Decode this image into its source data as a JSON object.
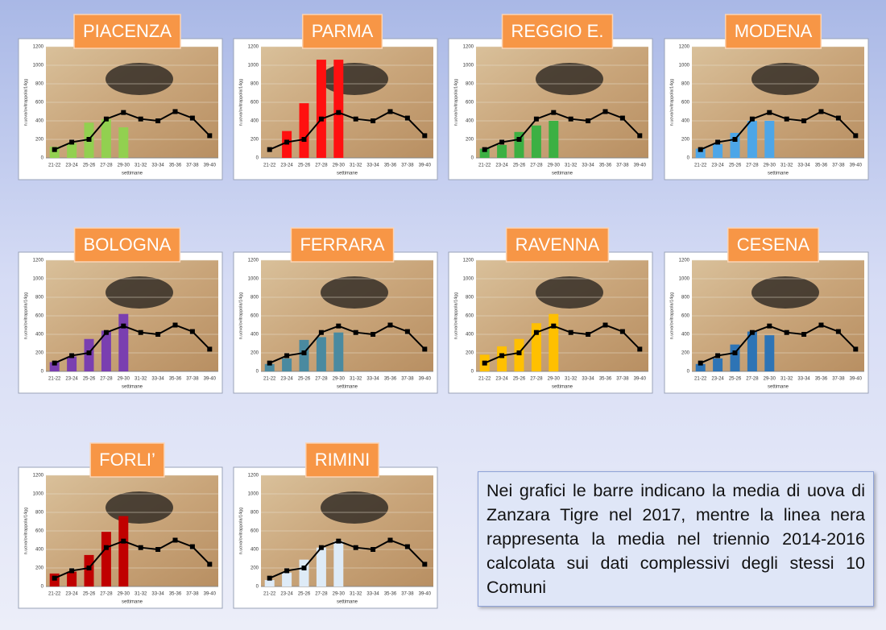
{
  "chart_data": [
    {
      "type": "bar",
      "title": "PIACENZA",
      "categories": [
        "21-22",
        "23-24",
        "25-26",
        "27-28",
        "29-30",
        "31-32",
        "33-34",
        "35-36",
        "37-38",
        "39-40"
      ],
      "xlabel": "settimane",
      "ylabel": "n.uova/ovitrappola/14gg",
      "ylim": [
        0,
        1200
      ],
      "yticks": [
        0,
        200,
        400,
        600,
        800,
        1000,
        1200
      ],
      "grid": true,
      "series": [
        {
          "type": "bar",
          "color": "#92d050",
          "values": [
            120,
            160,
            380,
            420,
            330,
            null,
            null,
            null,
            null,
            null
          ]
        },
        {
          "type": "line",
          "color": "#000000",
          "values": [
            90,
            170,
            200,
            420,
            490,
            420,
            400,
            500,
            430,
            240
          ]
        }
      ]
    },
    {
      "type": "bar",
      "title": "PARMA",
      "categories": [
        "21-22",
        "23-24",
        "25-26",
        "27-28",
        "29-30",
        "31-32",
        "33-34",
        "35-36",
        "37-38",
        "39-40"
      ],
      "xlabel": "settimane",
      "ylabel": "n.uova/ovitrappola/14gg",
      "ylim": [
        0,
        1200
      ],
      "yticks": [
        0,
        200,
        400,
        600,
        800,
        1000,
        1200
      ],
      "grid": true,
      "series": [
        {
          "type": "bar",
          "color": "#ff1010",
          "values": [
            null,
            290,
            590,
            1060,
            1060,
            null,
            null,
            null,
            null,
            null
          ]
        },
        {
          "type": "line",
          "color": "#000000",
          "values": [
            90,
            170,
            200,
            420,
            490,
            420,
            400,
            500,
            430,
            240
          ]
        }
      ]
    },
    {
      "type": "bar",
      "title": "REGGIO E.",
      "categories": [
        "21-22",
        "23-24",
        "25-26",
        "27-28",
        "29-30",
        "31-32",
        "33-34",
        "35-36",
        "37-38",
        "39-40"
      ],
      "xlabel": "settimane",
      "ylabel": "n.uova/ovitrappola/14gg",
      "ylim": [
        0,
        1200
      ],
      "yticks": [
        0,
        200,
        400,
        600,
        800,
        1000,
        1200
      ],
      "grid": true,
      "series": [
        {
          "type": "bar",
          "color": "#3cb043",
          "values": [
            100,
            140,
            280,
            350,
            400,
            null,
            null,
            null,
            null,
            null
          ]
        },
        {
          "type": "line",
          "color": "#000000",
          "values": [
            90,
            170,
            200,
            420,
            490,
            420,
            400,
            500,
            430,
            240
          ]
        }
      ]
    },
    {
      "type": "bar",
      "title": "MODENA",
      "categories": [
        "21-22",
        "23-24",
        "25-26",
        "27-28",
        "29-30",
        "31-32",
        "33-34",
        "35-36",
        "37-38",
        "39-40"
      ],
      "xlabel": "settimane",
      "ylabel": "n.uova/ovitrappola/14gg",
      "ylim": [
        0,
        1200
      ],
      "yticks": [
        0,
        200,
        400,
        600,
        800,
        1000,
        1200
      ],
      "grid": true,
      "series": [
        {
          "type": "bar",
          "color": "#4da6e8",
          "values": [
            100,
            150,
            270,
            400,
            400,
            null,
            null,
            null,
            null,
            null
          ]
        },
        {
          "type": "line",
          "color": "#000000",
          "values": [
            90,
            170,
            200,
            420,
            490,
            420,
            400,
            500,
            430,
            240
          ]
        }
      ]
    },
    {
      "type": "bar",
      "title": "BOLOGNA",
      "categories": [
        "21-22",
        "23-24",
        "25-26",
        "27-28",
        "29-30",
        "31-32",
        "33-34",
        "35-36",
        "37-38",
        "39-40"
      ],
      "xlabel": "settimane",
      "ylabel": "n.uova/ovitrappola/14gg",
      "ylim": [
        0,
        1200
      ],
      "yticks": [
        0,
        200,
        400,
        600,
        800,
        1000,
        1200
      ],
      "grid": true,
      "series": [
        {
          "type": "bar",
          "color": "#7a3fb0",
          "values": [
            100,
            160,
            350,
            440,
            620,
            null,
            null,
            null,
            null,
            null
          ]
        },
        {
          "type": "line",
          "color": "#000000",
          "values": [
            90,
            170,
            200,
            420,
            490,
            420,
            400,
            500,
            430,
            240
          ]
        }
      ]
    },
    {
      "type": "bar",
      "title": "FERRARA",
      "categories": [
        "21-22",
        "23-24",
        "25-26",
        "27-28",
        "29-30",
        "31-32",
        "33-34",
        "35-36",
        "37-38",
        "39-40"
      ],
      "xlabel": "settimane",
      "ylabel": "n.uova/ovitrappola/14gg",
      "ylim": [
        0,
        1200
      ],
      "yticks": [
        0,
        200,
        400,
        600,
        800,
        1000,
        1200
      ],
      "grid": true,
      "series": [
        {
          "type": "bar",
          "color": "#4a8aa0",
          "values": [
            80,
            140,
            340,
            370,
            420,
            null,
            null,
            null,
            null,
            null
          ]
        },
        {
          "type": "line",
          "color": "#000000",
          "values": [
            90,
            170,
            200,
            420,
            490,
            420,
            400,
            500,
            430,
            240
          ]
        }
      ]
    },
    {
      "type": "bar",
      "title": "RAVENNA",
      "categories": [
        "21-22",
        "23-24",
        "25-26",
        "27-28",
        "29-30",
        "31-32",
        "33-34",
        "35-36",
        "37-38",
        "39-40"
      ],
      "xlabel": "settimane",
      "ylabel": "n.uova/ovitrappola/14gg",
      "ylim": [
        0,
        1200
      ],
      "yticks": [
        0,
        200,
        400,
        600,
        800,
        1000,
        1200
      ],
      "grid": true,
      "series": [
        {
          "type": "bar",
          "color": "#ffc000",
          "values": [
            180,
            270,
            350,
            520,
            620,
            null,
            null,
            null,
            null,
            null
          ]
        },
        {
          "type": "line",
          "color": "#000000",
          "values": [
            90,
            170,
            200,
            420,
            490,
            420,
            400,
            500,
            430,
            240
          ]
        }
      ]
    },
    {
      "type": "bar",
      "title": "CESENA",
      "categories": [
        "21-22",
        "23-24",
        "25-26",
        "27-28",
        "29-30",
        "31-32",
        "33-34",
        "35-36",
        "37-38",
        "39-40"
      ],
      "xlabel": "settimane",
      "ylabel": "n.uova/ovitrappola/14gg",
      "ylim": [
        0,
        1200
      ],
      "yticks": [
        0,
        200,
        400,
        600,
        800,
        1000,
        1200
      ],
      "grid": true,
      "series": [
        {
          "type": "bar",
          "color": "#2e74b5",
          "values": [
            80,
            140,
            290,
            430,
            390,
            null,
            null,
            null,
            null,
            null
          ]
        },
        {
          "type": "line",
          "color": "#000000",
          "values": [
            90,
            170,
            200,
            420,
            490,
            420,
            400,
            500,
            430,
            240
          ]
        }
      ]
    },
    {
      "type": "bar",
      "title": "FORLI’",
      "categories": [
        "21-22",
        "23-24",
        "25-26",
        "27-28",
        "29-30",
        "31-32",
        "33-34",
        "35-36",
        "37-38",
        "39-40"
      ],
      "xlabel": "settimane",
      "ylabel": "n.uova/ovitrappola/14gg",
      "ylim": [
        0,
        1200
      ],
      "yticks": [
        0,
        200,
        400,
        600,
        800,
        1000,
        1200
      ],
      "grid": true,
      "series": [
        {
          "type": "bar",
          "color": "#c00000",
          "values": [
            140,
            160,
            340,
            590,
            760,
            null,
            null,
            null,
            null,
            null
          ]
        },
        {
          "type": "line",
          "color": "#000000",
          "values": [
            90,
            170,
            200,
            420,
            490,
            420,
            400,
            500,
            430,
            240
          ]
        }
      ]
    },
    {
      "type": "bar",
      "title": "RIMINI",
      "categories": [
        "21-22",
        "23-24",
        "25-26",
        "27-28",
        "29-30",
        "31-32",
        "33-34",
        "35-36",
        "37-38",
        "39-40"
      ],
      "xlabel": "settimane",
      "ylabel": "n.uova/ovitrappola/14gg",
      "ylim": [
        0,
        1200
      ],
      "yticks": [
        0,
        200,
        400,
        600,
        800,
        1000,
        1200
      ],
      "grid": true,
      "series": [
        {
          "type": "bar",
          "color": "#deebf7",
          "values": [
            70,
            150,
            290,
            420,
            490,
            null,
            null,
            null,
            null,
            null
          ]
        },
        {
          "type": "line",
          "color": "#000000",
          "values": [
            90,
            170,
            200,
            420,
            490,
            420,
            400,
            500,
            430,
            240
          ]
        }
      ]
    }
  ],
  "note": "Nei grafici le barre indicano la media di uova di Zanzara Tigre nel 2017, mentre la linea nera rappresenta la media nel triennio 2014-2016 calcolata sui dati complessivi degli stessi 10 Comuni"
}
